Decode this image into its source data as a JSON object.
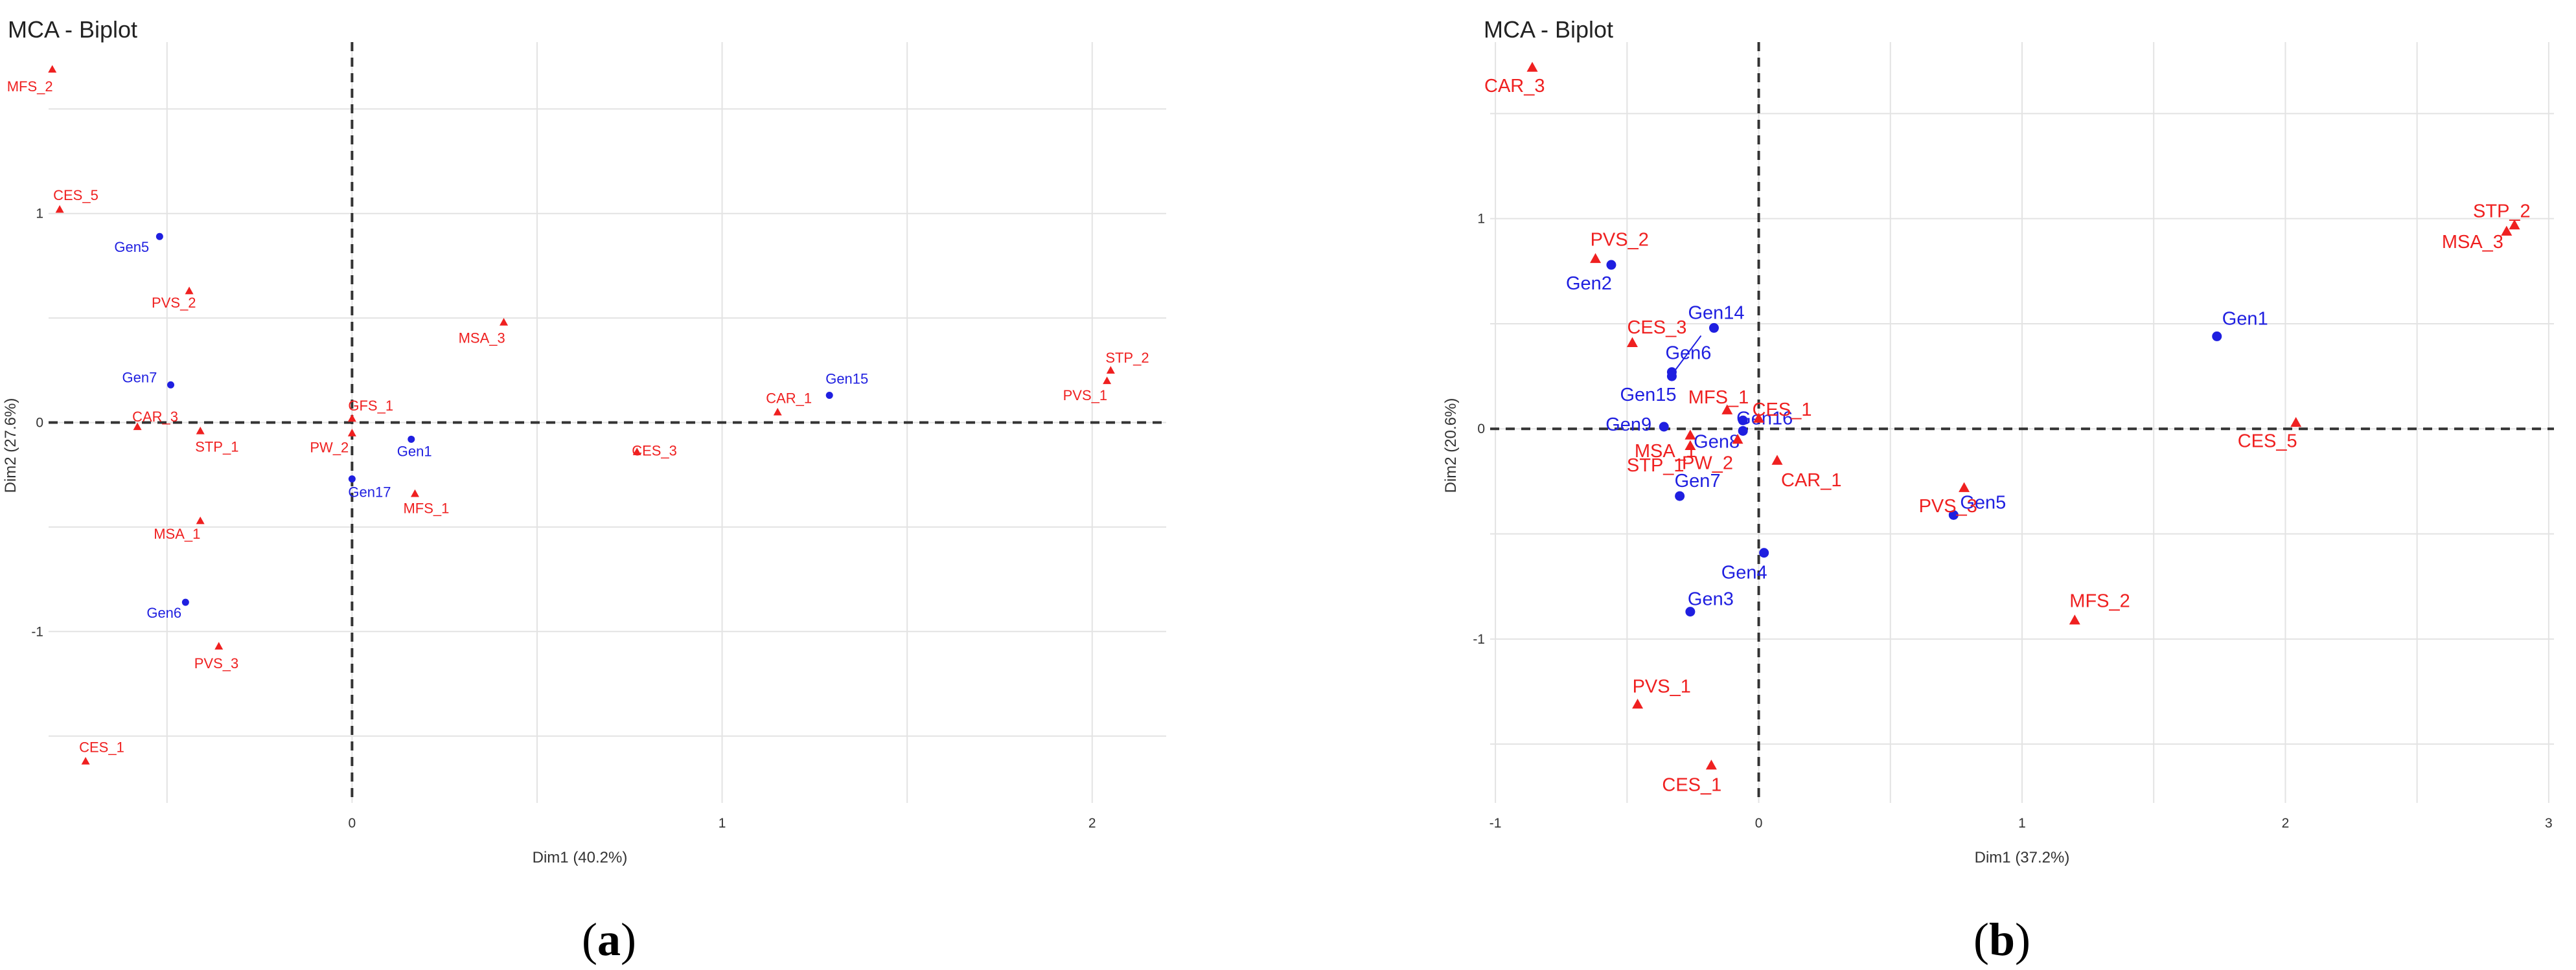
{
  "colors": {
    "individual": "#1f1fe0",
    "variable": "#ef2020",
    "grid": "#e3e3e3",
    "zero_line": "#333333"
  },
  "panels": [
    {
      "caption_open": "(",
      "caption_letter": "a",
      "caption_close": ")"
    },
    {
      "caption_open": "(",
      "caption_letter": "b",
      "caption_close": ")"
    }
  ],
  "chart_data": [
    {
      "type": "scatter",
      "title": "MCA - Biplot",
      "xlabel": "Dim1 (40.2%)",
      "ylabel": "Dim2 (27.6%)",
      "xlim": [
        -0.82,
        2.2
      ],
      "ylim": [
        -1.82,
        1.82
      ],
      "xticks": [
        0,
        1,
        2
      ],
      "yticks": [
        -1,
        0,
        1
      ],
      "xtick_labels": [
        "0",
        "1",
        "2"
      ],
      "ytick_labels": [
        "-1",
        "0",
        "1"
      ],
      "series": [
        {
          "name": "individuals",
          "marker": "circle",
          "points": [
            {
              "label": "Gen5",
              "x": -0.52,
              "y": 0.89
            },
            {
              "label": "Gen7",
              "x": -0.49,
              "y": 0.18
            },
            {
              "label": "Gen1",
              "x": 0.16,
              "y": -0.08
            },
            {
              "label": "Gen17",
              "x": 0.0,
              "y": -0.27
            },
            {
              "label": "Gen6",
              "x": -0.45,
              "y": -0.86
            },
            {
              "label": "Gen15",
              "x": 1.29,
              "y": 0.13
            }
          ]
        },
        {
          "name": "variables",
          "marker": "triangle",
          "points": [
            {
              "label": "MFS_2",
              "x": -0.81,
              "y": 1.69
            },
            {
              "label": "CES_5",
              "x": -0.79,
              "y": 1.02
            },
            {
              "label": "PVS_2",
              "x": -0.44,
              "y": 0.63
            },
            {
              "label": "CAR_3",
              "x": -0.58,
              "y": -0.02
            },
            {
              "label": "STP_1",
              "x": -0.41,
              "y": -0.04
            },
            {
              "label": "MSA_1",
              "x": -0.41,
              "y": -0.47
            },
            {
              "label": "PVS_3",
              "x": -0.36,
              "y": -1.07
            },
            {
              "label": "CES_1",
              "x": -0.72,
              "y": -1.62
            },
            {
              "label": "MSA_3",
              "x": 0.41,
              "y": 0.48
            },
            {
              "label": "GFS_1",
              "x": 0.0,
              "y": 0.02
            },
            {
              "label": "PW_2",
              "x": 0.0,
              "y": -0.05
            },
            {
              "label": "MFS_1",
              "x": 0.17,
              "y": -0.34
            },
            {
              "label": "CES_3",
              "x": 0.77,
              "y": -0.14
            },
            {
              "label": "CAR_1",
              "x": 1.15,
              "y": 0.05
            },
            {
              "label": "STP_2",
              "x": 2.05,
              "y": 0.25
            },
            {
              "label": "PVS_1",
              "x": 2.04,
              "y": 0.2
            }
          ]
        }
      ]
    },
    {
      "type": "scatter",
      "title": "MCA - Biplot",
      "xlabel": "Dim1 (37.2%)",
      "ylabel": "Dim2 (20.6%)",
      "xlim": [
        -1.02,
        3.02
      ],
      "ylim": [
        -1.78,
        1.84
      ],
      "xticks": [
        -1,
        0,
        1,
        2,
        3
      ],
      "yticks": [
        -1,
        0,
        1
      ],
      "xtick_labels": [
        "-1",
        "0",
        "1",
        "2",
        "3"
      ],
      "ytick_labels": [
        "-1",
        "0",
        "1"
      ],
      "series": [
        {
          "name": "individuals",
          "marker": "circle",
          "points": [
            {
              "label": "Gen2",
              "x": -0.56,
              "y": 0.78
            },
            {
              "label": "Gen14",
              "x": -0.17,
              "y": 0.48
            },
            {
              "label": "Gen6",
              "x": -0.33,
              "y": 0.27
            },
            {
              "label": "Gen15",
              "x": -0.33,
              "y": 0.25
            },
            {
              "label": "Gen9",
              "x": -0.36,
              "y": 0.01
            },
            {
              "label": "Gen16",
              "x": -0.06,
              "y": 0.04
            },
            {
              "label": "Gen8",
              "x": -0.06,
              "y": -0.01
            },
            {
              "label": "Gen7",
              "x": -0.3,
              "y": -0.32
            },
            {
              "label": "Gen4",
              "x": 0.02,
              "y": -0.59
            },
            {
              "label": "Gen3",
              "x": -0.26,
              "y": -0.87
            },
            {
              "label": "Gen5",
              "x": 0.74,
              "y": -0.41
            },
            {
              "label": "Gen1",
              "x": 1.74,
              "y": 0.44
            }
          ]
        },
        {
          "name": "variables",
          "marker": "triangle",
          "points": [
            {
              "label": "CAR_3",
              "x": -0.86,
              "y": 1.72
            },
            {
              "label": "PVS_2",
              "x": -0.62,
              "y": 0.81
            },
            {
              "label": "CES_3",
              "x": -0.48,
              "y": 0.41
            },
            {
              "label": "MFS_1",
              "x": -0.12,
              "y": 0.09
            },
            {
              "label": "CES_1",
              "x": -0.0,
              "y": 0.05
            },
            {
              "label": "MSA_1",
              "x": -0.26,
              "y": -0.03
            },
            {
              "label": "PW_2",
              "x": -0.08,
              "y": -0.05
            },
            {
              "label": "STP_1",
              "x": -0.26,
              "y": -0.08
            },
            {
              "label": "CAR_1",
              "x": 0.07,
              "y": -0.15
            },
            {
              "label": "PVS_3",
              "x": 0.78,
              "y": -0.28
            },
            {
              "label": "MFS_2",
              "x": 1.2,
              "y": -0.91
            },
            {
              "label": "PVS_1",
              "x": -0.46,
              "y": -1.31
            },
            {
              "label": "CES_1",
              "x": -0.18,
              "y": -1.6
            },
            {
              "label": "CES_5",
              "x": 2.04,
              "y": 0.03
            },
            {
              "label": "STP_2",
              "x": 2.87,
              "y": 0.97
            },
            {
              "label": "MSA_3",
              "x": 2.84,
              "y": 0.94
            }
          ]
        }
      ]
    }
  ]
}
